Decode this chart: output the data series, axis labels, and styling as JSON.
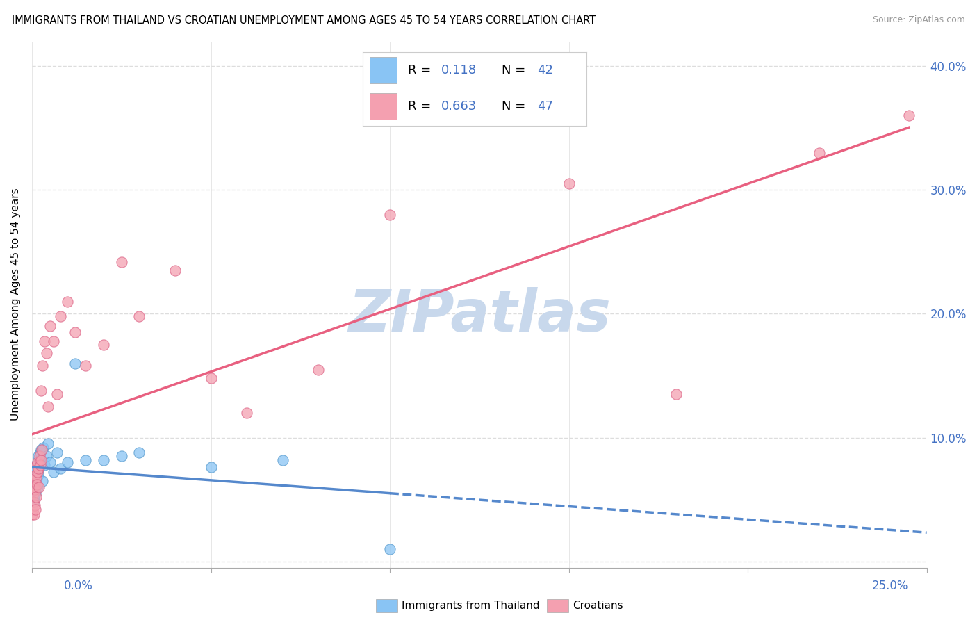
{
  "title": "IMMIGRANTS FROM THAILAND VS CROATIAN UNEMPLOYMENT AMONG AGES 45 TO 54 YEARS CORRELATION CHART",
  "source": "Source: ZipAtlas.com",
  "ylabel": "Unemployment Among Ages 45 to 54 years",
  "xlim": [
    0.0,
    0.25
  ],
  "ylim": [
    -0.005,
    0.42
  ],
  "yticks": [
    0.0,
    0.1,
    0.2,
    0.3,
    0.4
  ],
  "ytick_labels": [
    "",
    "10.0%",
    "20.0%",
    "30.0%",
    "40.0%"
  ],
  "r_thailand": 0.118,
  "n_thailand": 42,
  "r_croatian": 0.663,
  "n_croatian": 47,
  "scatter_thailand_x": [
    0.0002,
    0.0003,
    0.0004,
    0.0005,
    0.0005,
    0.0006,
    0.0007,
    0.0008,
    0.0008,
    0.0009,
    0.001,
    0.001,
    0.0011,
    0.0012,
    0.0013,
    0.0014,
    0.0015,
    0.0016,
    0.0017,
    0.0018,
    0.002,
    0.0022,
    0.0024,
    0.0026,
    0.003,
    0.0032,
    0.0035,
    0.004,
    0.0045,
    0.005,
    0.006,
    0.007,
    0.008,
    0.01,
    0.012,
    0.015,
    0.02,
    0.025,
    0.03,
    0.05,
    0.07,
    0.1
  ],
  "scatter_thailand_y": [
    0.055,
    0.058,
    0.06,
    0.048,
    0.052,
    0.065,
    0.062,
    0.07,
    0.058,
    0.068,
    0.055,
    0.072,
    0.064,
    0.075,
    0.068,
    0.078,
    0.06,
    0.08,
    0.07,
    0.085,
    0.075,
    0.082,
    0.088,
    0.09,
    0.065,
    0.092,
    0.078,
    0.085,
    0.095,
    0.08,
    0.072,
    0.088,
    0.075,
    0.08,
    0.16,
    0.082,
    0.082,
    0.085,
    0.088,
    0.076,
    0.082,
    0.01
  ],
  "scatter_croatian_x": [
    0.0001,
    0.0002,
    0.0003,
    0.0004,
    0.0005,
    0.0005,
    0.0006,
    0.0007,
    0.0008,
    0.0009,
    0.001,
    0.0011,
    0.0012,
    0.0013,
    0.0014,
    0.0015,
    0.0016,
    0.0018,
    0.002,
    0.0022,
    0.0024,
    0.0025,
    0.0026,
    0.0028,
    0.003,
    0.0035,
    0.004,
    0.0045,
    0.005,
    0.006,
    0.007,
    0.008,
    0.01,
    0.012,
    0.015,
    0.02,
    0.025,
    0.03,
    0.04,
    0.05,
    0.06,
    0.08,
    0.1,
    0.15,
    0.18,
    0.22,
    0.245
  ],
  "scatter_croatian_y": [
    0.038,
    0.042,
    0.055,
    0.048,
    0.06,
    0.038,
    0.065,
    0.045,
    0.058,
    0.042,
    0.07,
    0.052,
    0.068,
    0.078,
    0.062,
    0.072,
    0.08,
    0.075,
    0.06,
    0.085,
    0.078,
    0.138,
    0.082,
    0.09,
    0.158,
    0.178,
    0.168,
    0.125,
    0.19,
    0.178,
    0.135,
    0.198,
    0.21,
    0.185,
    0.158,
    0.175,
    0.242,
    0.198,
    0.235,
    0.148,
    0.12,
    0.155,
    0.28,
    0.305,
    0.135,
    0.33,
    0.36
  ],
  "color_thailand": "#89C4F4",
  "color_croatian": "#F4A0B0",
  "color_trendline_thailand": "#5588CC",
  "color_trendline_croatian": "#E86080",
  "watermark": "ZIPatlas",
  "watermark_color": "#C8D8EC",
  "background_color": "#FFFFFF",
  "grid_color": "#DDDDDD"
}
